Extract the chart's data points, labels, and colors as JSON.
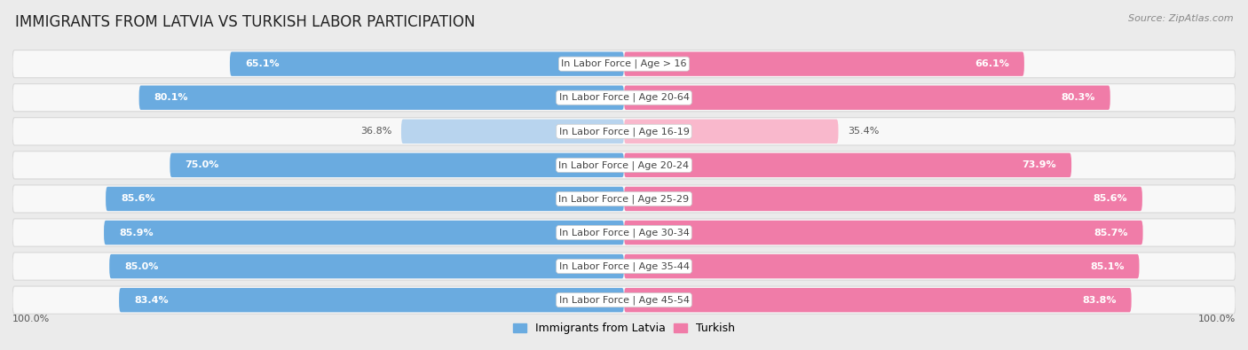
{
  "title": "IMMIGRANTS FROM LATVIA VS TURKISH LABOR PARTICIPATION",
  "source": "Source: ZipAtlas.com",
  "categories": [
    "In Labor Force | Age > 16",
    "In Labor Force | Age 20-64",
    "In Labor Force | Age 16-19",
    "In Labor Force | Age 20-24",
    "In Labor Force | Age 25-29",
    "In Labor Force | Age 30-34",
    "In Labor Force | Age 35-44",
    "In Labor Force | Age 45-54"
  ],
  "latvia_values": [
    65.1,
    80.1,
    36.8,
    75.0,
    85.6,
    85.9,
    85.0,
    83.4
  ],
  "turkish_values": [
    66.1,
    80.3,
    35.4,
    73.9,
    85.6,
    85.7,
    85.1,
    83.8
  ],
  "latvia_color": "#6aabe0",
  "turkish_color": "#f07ca8",
  "latvia_color_light": "#b8d4ee",
  "turkish_color_light": "#f9b8cc",
  "bg_color": "#ebebeb",
  "row_bg": "#f8f8f8",
  "row_border": "#d8d8d8",
  "legend_latvia": "Immigrants from Latvia",
  "legend_turkish": "Turkish",
  "footer_value": "100.0%",
  "title_fontsize": 12,
  "label_fontsize": 8,
  "value_fontsize": 8,
  "source_fontsize": 8
}
